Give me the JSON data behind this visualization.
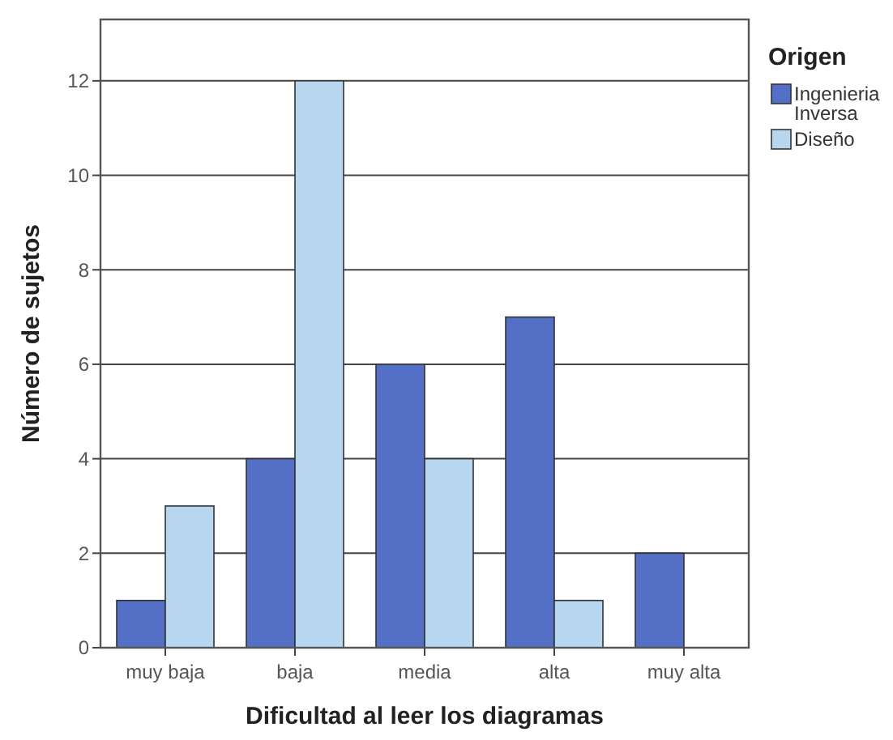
{
  "chart_data": {
    "type": "bar",
    "xlabel": "Dificultad al leer los diagramas",
    "ylabel": "Número de sujetos",
    "legend_title": "Origen",
    "legend": "right",
    "grid": "y",
    "categories": [
      "muy baja",
      "baja",
      "media",
      "alta",
      "muy alta"
    ],
    "series": [
      {
        "name": "Ingenieria Inversa",
        "color": "#5470c6",
        "values": [
          1,
          4,
          6,
          7,
          2
        ]
      },
      {
        "name": "Diseño",
        "color": "#b7d7f0",
        "values": [
          3,
          12,
          4,
          1,
          null
        ]
      }
    ],
    "ylim": [
      0,
      13.3
    ],
    "yticks": [
      0,
      2,
      4,
      6,
      8,
      10,
      12
    ]
  }
}
